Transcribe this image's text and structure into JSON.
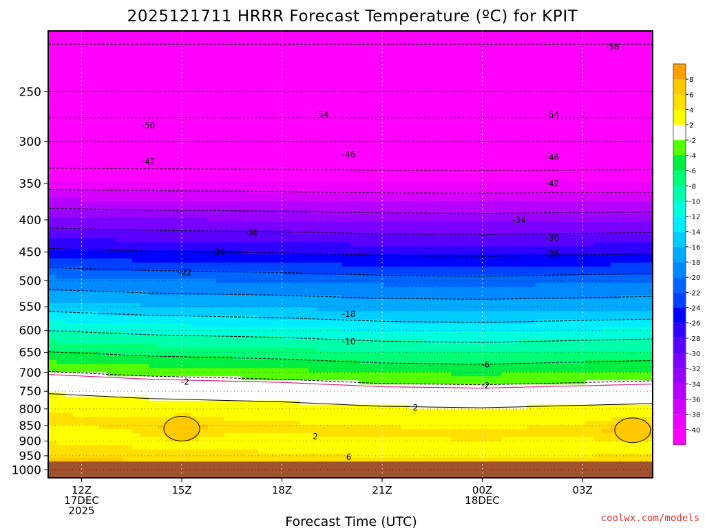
{
  "chart_data": {
    "type": "heatmap",
    "title": "2025121711 HRRR Forecast Temperature (ºC) for KPIT",
    "xlabel": "Forecast Time (UTC)",
    "ylabel": "",
    "credit": "coolwx.com/models",
    "y_axis": {
      "unit": "hPa",
      "scale": "log",
      "range": [
        1030,
        200
      ],
      "ticks": [
        250,
        300,
        350,
        400,
        450,
        500,
        550,
        600,
        650,
        700,
        750,
        800,
        850,
        900,
        950,
        1000
      ]
    },
    "x_axis": {
      "range_hours": [
        -1,
        17.1
      ],
      "ticks": [
        {
          "hour": 0,
          "lines": [
            "12Z",
            "17DEC",
            "2025"
          ]
        },
        {
          "hour": 3,
          "lines": [
            "15Z"
          ]
        },
        {
          "hour": 6,
          "lines": [
            "18Z"
          ]
        },
        {
          "hour": 9,
          "lines": [
            "21Z"
          ]
        },
        {
          "hour": 12,
          "lines": [
            "00Z",
            "18DEC"
          ]
        },
        {
          "hour": 15,
          "lines": [
            "03Z"
          ]
        }
      ]
    },
    "grid": true,
    "ground_below_hPa": 975,
    "colorbar": {
      "placement": "right",
      "levels": [
        -40,
        -38,
        -36,
        -34,
        -32,
        -30,
        -28,
        -26,
        -24,
        -22,
        -20,
        -18,
        -16,
        -14,
        -12,
        -10,
        -8,
        -6,
        -4,
        -2,
        2,
        4,
        6,
        8
      ],
      "colors": [
        "#ff00ff",
        "#ee00ff",
        "#d400ff",
        "#b400ff",
        "#9a00ff",
        "#7a00ff",
        "#5a00ff",
        "#3000ff",
        "#0000ff",
        "#0040ff",
        "#0064ff",
        "#0088ff",
        "#00aaff",
        "#00ccff",
        "#00eeff",
        "#00ffdd",
        "#00ffaa",
        "#00ff77",
        "#00ee44",
        "#55ff00",
        "#ffffff",
        "#ffff00",
        "#ffe000",
        "#ffc800",
        "#ffa000"
      ]
    },
    "temperature_profile": [
      {
        "hPa": 200,
        "T": -59
      },
      {
        "hPa": 250,
        "T": -54
      },
      {
        "hPa": 300,
        "T": -46
      },
      {
        "hPa": 340,
        "T": -41
      },
      {
        "hPa": 400,
        "T": -32
      },
      {
        "hPa": 450,
        "T": -26
      },
      {
        "hPa": 500,
        "T": -20
      },
      {
        "hPa": 550,
        "T": -16
      },
      {
        "hPa": 600,
        "T": -11
      },
      {
        "hPa": 650,
        "T": -7
      },
      {
        "hPa": 700,
        "T": -3
      },
      {
        "hPa": 740,
        "T": 0
      },
      {
        "hPa": 780,
        "T": 2.3
      },
      {
        "hPa": 850,
        "T": 4.5
      },
      {
        "hPa": 900,
        "T": 3.2
      },
      {
        "hPa": 950,
        "T": 4.5
      },
      {
        "hPa": 975,
        "T": 6
      }
    ],
    "time_shift_hPa": [
      {
        "hour": -1,
        "shift": -20
      },
      {
        "hour": 2,
        "shift": -5
      },
      {
        "hour": 6,
        "shift": 5
      },
      {
        "hour": 9,
        "shift": 18
      },
      {
        "hour": 12,
        "shift": 22
      },
      {
        "hour": 15,
        "shift": 15
      },
      {
        "hour": 17.1,
        "shift": 10
      }
    ],
    "warm_pockets": [
      {
        "hour": 3,
        "hPa": 860,
        "label": ""
      },
      {
        "hour": 16.5,
        "hPa": 865,
        "label": ""
      }
    ],
    "contour_labels": [
      {
        "text": "-58",
        "hour": 15.9,
        "hPa": 212
      },
      {
        "text": "-54",
        "hour": 7.2,
        "hPa": 272
      },
      {
        "text": "-54",
        "hour": 14.1,
        "hPa": 272
      },
      {
        "text": "-50",
        "hour": 2,
        "hPa": 283
      },
      {
        "text": "-46",
        "hour": 8.0,
        "hPa": 315
      },
      {
        "text": "-46",
        "hour": 14.1,
        "hPa": 318
      },
      {
        "text": "-42",
        "hour": 2,
        "hPa": 323
      },
      {
        "text": "-42",
        "hour": 14.1,
        "hPa": 350
      },
      {
        "text": "-34",
        "hour": 13.1,
        "hPa": 400
      },
      {
        "text": "-30",
        "hour": 5.1,
        "hPa": 419
      },
      {
        "text": "-30",
        "hour": 14.1,
        "hPa": 427
      },
      {
        "text": "-26",
        "hour": 4.1,
        "hPa": 450
      },
      {
        "text": "-26",
        "hour": 14.1,
        "hPa": 453
      },
      {
        "text": "-22",
        "hour": 3.1,
        "hPa": 485
      },
      {
        "text": "-18",
        "hour": 8.0,
        "hPa": 565
      },
      {
        "text": "-10",
        "hour": 8.0,
        "hPa": 625
      },
      {
        "text": "-6",
        "hour": 12.1,
        "hPa": 680
      },
      {
        "text": "-2",
        "hour": 3.1,
        "hPa": 725
      },
      {
        "text": "-2",
        "hour": 12.1,
        "hPa": 735
      },
      {
        "text": "2",
        "hour": 10.0,
        "hPa": 796
      },
      {
        "text": "2",
        "hour": 7.0,
        "hPa": 885
      },
      {
        "text": "6",
        "hour": 8.0,
        "hPa": 955
      }
    ]
  }
}
